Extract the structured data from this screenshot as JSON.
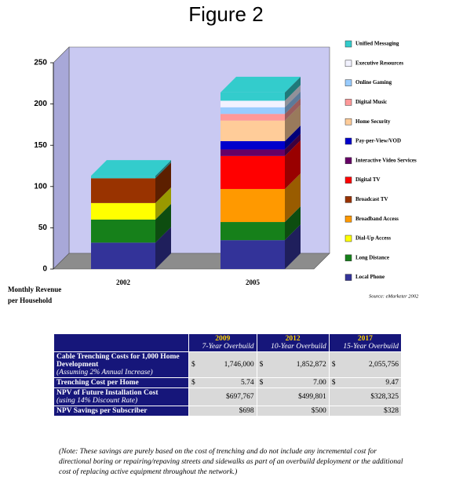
{
  "chart_data": {
    "type": "bar",
    "stacked": true,
    "title": "Figure 2",
    "y_label_lines": [
      "Monthly Revenue",
      "per Household"
    ],
    "source": "Source: eMarketer 2002",
    "categories": [
      "2002",
      "2005"
    ],
    "ylim": [
      0,
      250
    ],
    "yticks": [
      0,
      50,
      100,
      150,
      200,
      250
    ],
    "series": [
      {
        "name": "Local Phone",
        "color": "#333399",
        "values": [
          32,
          35
        ]
      },
      {
        "name": "Long Distance",
        "color": "#16801a",
        "values": [
          28,
          22
        ]
      },
      {
        "name": "Dial-Up Access",
        "color": "#ffff00",
        "values": [
          20,
          0
        ]
      },
      {
        "name": "Broadband Access",
        "color": "#ff9900",
        "values": [
          0,
          40
        ]
      },
      {
        "name": "Broadcast TV",
        "color": "#993300",
        "values": [
          30,
          0
        ]
      },
      {
        "name": "Digital TV",
        "color": "#ff0000",
        "values": [
          0,
          40
        ]
      },
      {
        "name": "Interactive Video Services",
        "color": "#660066",
        "values": [
          0,
          8
        ]
      },
      {
        "name": "Pay-per-View/VOD",
        "color": "#0000cc",
        "values": [
          0,
          10
        ]
      },
      {
        "name": "Home Security",
        "color": "#ffcc99",
        "values": [
          0,
          25
        ]
      },
      {
        "name": "Digital Music",
        "color": "#ff9999",
        "values": [
          0,
          8
        ]
      },
      {
        "name": "Online Gaming",
        "color": "#99ccff",
        "values": [
          0,
          8
        ]
      },
      {
        "name": "Executive Resources",
        "color": "#f2f2ff",
        "values": [
          0,
          8
        ]
      },
      {
        "name": "Unified Messaging",
        "color": "#33cccc",
        "values": [
          3,
          10
        ]
      }
    ]
  },
  "table": {
    "header": [
      {
        "year": "2009",
        "subtitle": "7-Year Overbuild"
      },
      {
        "year": "2012",
        "subtitle": "10-Year Overbuild"
      },
      {
        "year": "2017",
        "subtitle": "15-Year Overbuild"
      }
    ],
    "rows": [
      {
        "label": [
          "Cable Trenching Costs for 1,000 Home Development",
          "(Assuming 2% Annual Increase)"
        ],
        "cells": [
          [
            "$",
            "1,746,000"
          ],
          [
            "$",
            "1,852,872"
          ],
          [
            "$",
            "2,055,756"
          ]
        ]
      },
      {
        "label": [
          "Trenching Cost per Home"
        ],
        "cells": [
          [
            "$",
            "5.74"
          ],
          [
            "$",
            "7.00"
          ],
          [
            "$",
            "9.47"
          ]
        ]
      },
      {
        "label": [
          "NPV of Future Installation Cost",
          "(using 14% Discount Rate)"
        ],
        "cells": [
          [
            "$697,767"
          ],
          [
            "$499,801"
          ],
          [
            "$328,325"
          ]
        ]
      },
      {
        "label": [
          "NPV Savings per Subscriber"
        ],
        "cells": [
          [
            "$698"
          ],
          [
            "$500"
          ],
          [
            "$328"
          ]
        ]
      }
    ]
  },
  "note": "(Note: These savings are purely based on the cost of trenching and do not include any incremental cost for directional boring or repairing/repaving streets and sidewalks as part of an overbuild deployment or the additional cost of replacing active equipment throughout the network.)"
}
